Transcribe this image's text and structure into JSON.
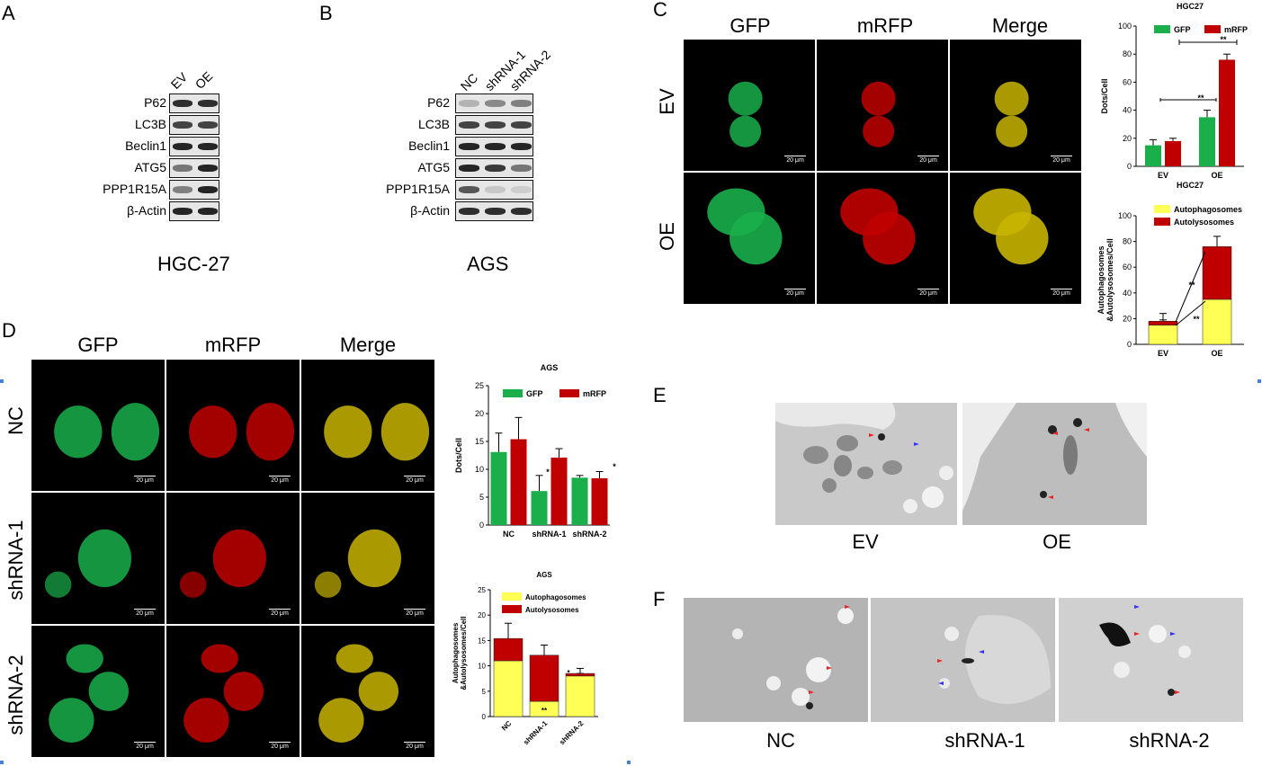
{
  "panels": {
    "A": {
      "letter": "A",
      "lanes": [
        "EV",
        "OE"
      ],
      "proteins": [
        "P62",
        "LC3B",
        "Beclin1",
        "ATG5",
        "PPP1R15A",
        "β-Actin"
      ],
      "cell_line": "HGC-27"
    },
    "B": {
      "letter": "B",
      "lanes": [
        "NC",
        "shRNA-1",
        "shRNA-2"
      ],
      "proteins": [
        "P62",
        "LC3B",
        "Beclin1",
        "ATG5",
        "PPP1R15A",
        "β-Actin"
      ],
      "cell_line": "AGS"
    },
    "C": {
      "letter": "C",
      "columns": [
        "GFP",
        "mRFP",
        "Merge"
      ],
      "rows": [
        "EV",
        "OE"
      ],
      "scale_bar": "20 μm"
    },
    "D": {
      "letter": "D",
      "columns": [
        "GFP",
        "mRFP",
        "Merge"
      ],
      "rows": [
        "NC",
        "shRNA-1",
        "shRNA-2"
      ],
      "scale_bar": "20 μm"
    },
    "E": {
      "letter": "E",
      "captions": [
        "EV",
        "OE"
      ]
    },
    "F": {
      "letter": "F",
      "captions": [
        "NC",
        "shRNA-1",
        "shRNA-2"
      ]
    }
  },
  "colors": {
    "gfp": "#1aaf4b",
    "mrfp": "#c00000",
    "autophagosome": "#ffff55",
    "autolysosome": "#c00000",
    "merge": "#c8b400"
  },
  "chart_data": [
    {
      "type": "bar",
      "title": "HGC27",
      "ylabel": "Dots/Cell",
      "categories": [
        "EV",
        "OE"
      ],
      "series": [
        {
          "name": "GFP",
          "values": [
            15,
            35
          ],
          "errors": [
            4,
            5
          ]
        },
        {
          "name": "mRFP",
          "values": [
            18,
            76
          ],
          "errors": [
            2,
            4
          ]
        }
      ],
      "ylim": [
        0,
        100
      ],
      "yticks": [
        0,
        20,
        40,
        60,
        80,
        100
      ],
      "annotations": [
        "**",
        "**"
      ],
      "legend": "top"
    },
    {
      "type": "bar",
      "title": "HGC27",
      "ylabel": "Autophagosomes &Autolysosomes/Cell",
      "categories": [
        "EV",
        "OE"
      ],
      "stacked": true,
      "series": [
        {
          "name": "Autophagosomes",
          "values": [
            15,
            35
          ],
          "errors": [
            4,
            5
          ]
        },
        {
          "name": "Autolysosomes",
          "values": [
            3,
            41
          ],
          "errors": [
            6,
            8
          ]
        }
      ],
      "ylim": [
        0,
        100
      ],
      "yticks": [
        0,
        20,
        40,
        60,
        80,
        100
      ],
      "annotations": [
        "**",
        "**"
      ],
      "legend": "top"
    },
    {
      "type": "bar",
      "title": "AGS",
      "ylabel": "Dots/Cell",
      "categories": [
        "NC",
        "shRNA-1",
        "shRNA-2"
      ],
      "series": [
        {
          "name": "GFP",
          "values": [
            13.1,
            6.1,
            8.5
          ],
          "errors": [
            3.4,
            2.8,
            0.4
          ]
        },
        {
          "name": "mRFP",
          "values": [
            15.4,
            12.1,
            8.4
          ],
          "errors": [
            3.9,
            1.6,
            1.2
          ]
        }
      ],
      "ylim": [
        0,
        25
      ],
      "yticks": [
        0,
        5,
        10,
        15,
        20,
        25
      ],
      "annotations": [
        "*",
        "*"
      ],
      "legend": "top"
    },
    {
      "type": "bar",
      "title": "AGS",
      "ylabel": "Autophagosomes &Autolysosomes/Cell",
      "categories": [
        "NC",
        "shRNA-1",
        "shRNA-2"
      ],
      "stacked": true,
      "series": [
        {
          "name": "Autophagosomes",
          "values": [
            11,
            3,
            8
          ],
          "errors": [
            1,
            0.5,
            0.5
          ]
        },
        {
          "name": "Autolysosomes",
          "values": [
            4.4,
            9.1,
            0.5
          ],
          "errors": [
            3,
            2,
            1
          ]
        }
      ],
      "ylim": [
        0,
        25
      ],
      "yticks": [
        0,
        5,
        10,
        15,
        20,
        25
      ],
      "annotations": [
        "**",
        "*"
      ],
      "legend": "top"
    }
  ]
}
